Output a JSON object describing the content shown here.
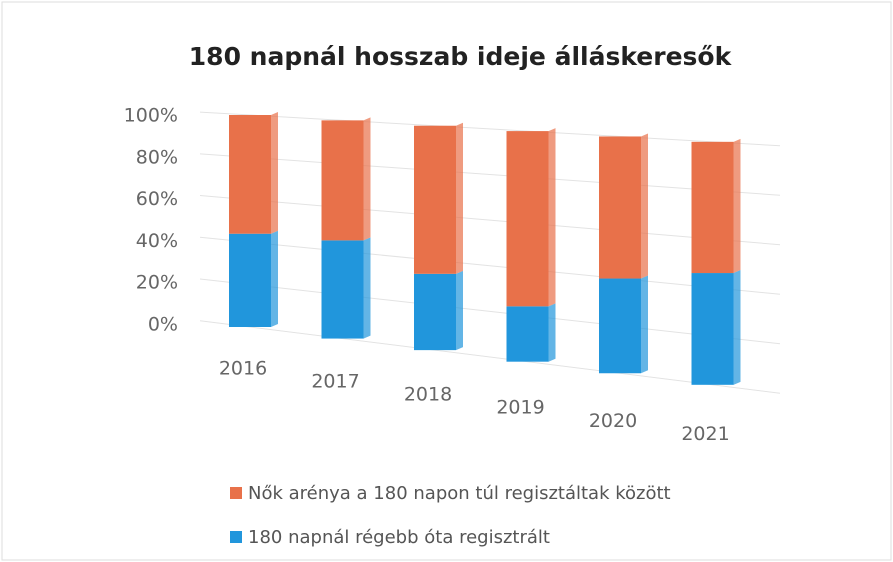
{
  "chart_data": {
    "type": "stacked_bar",
    "title": "180 napnál hosszab ideje álláskeresők",
    "categories": [
      "2016",
      "2017",
      "2018",
      "2019",
      "2020",
      "2021"
    ],
    "series": [
      {
        "name": "180 napnál régebb óta regisztrált",
        "color": "#2196dc",
        "values": [
          44,
          45,
          34,
          24,
          40,
          46
        ]
      },
      {
        "name": "Nők arénya a 180 napon túl regisztáltak között",
        "color": "#e8714a",
        "values": [
          56,
          55,
          66,
          76,
          60,
          54
        ]
      }
    ],
    "ylim": [
      0,
      100
    ],
    "yticks": [
      {
        "value": 0,
        "label": "0%"
      },
      {
        "value": 20,
        "label": "20%"
      },
      {
        "value": 40,
        "label": "40%"
      },
      {
        "value": 60,
        "label": "60%"
      },
      {
        "value": 80,
        "label": "80%"
      },
      {
        "value": 100,
        "label": "100%"
      }
    ],
    "grid": true
  }
}
